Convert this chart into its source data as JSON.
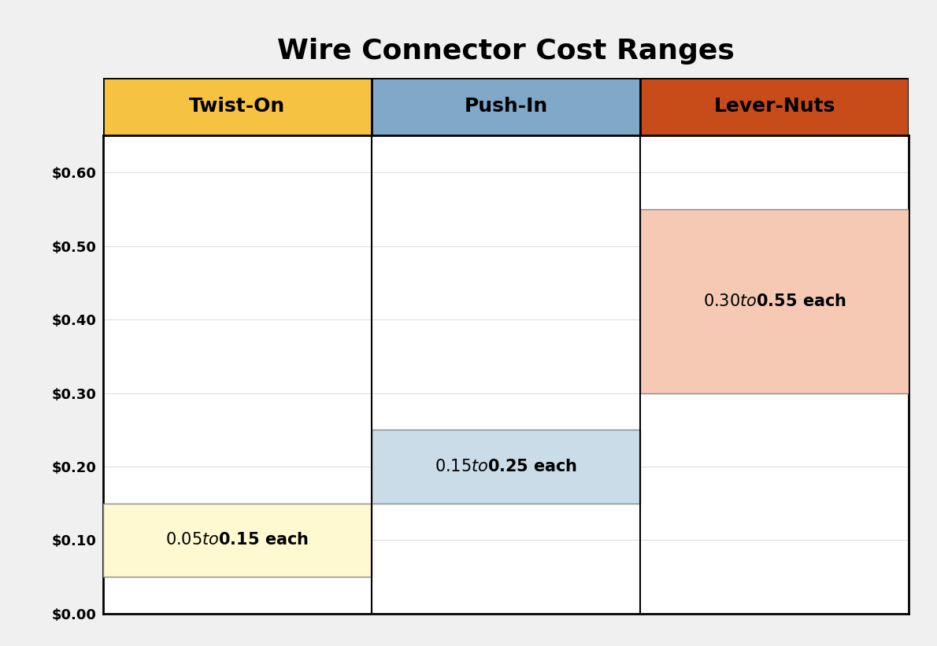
{
  "title": "Wire Connector Cost Ranges",
  "title_fontsize": 26,
  "title_fontweight": "bold",
  "columns": [
    "Twist-On",
    "Push-In",
    "Lever-Nuts"
  ],
  "header_colors": [
    "#F5C242",
    "#7FA8C9",
    "#C84B1A"
  ],
  "header_text_color": "#000000",
  "header_fontsize": 18,
  "header_fontweight": "bold",
  "ranges": [
    {
      "col": 0,
      "low": 0.05,
      "high": 0.15,
      "color": "#FEF9D0",
      "label": "$0.05 to $0.15 each"
    },
    {
      "col": 1,
      "low": 0.15,
      "high": 0.25,
      "color": "#C9DCE8",
      "label": "$0.15 to $0.25 each"
    },
    {
      "col": 2,
      "low": 0.3,
      "high": 0.55,
      "color": "#F5C9B3",
      "label": "$0.30 to $0.55 each"
    }
  ],
  "range_label_fontsize": 15,
  "range_label_fontweight": "bold",
  "ylim": [
    0.0,
    0.65
  ],
  "yticks": [
    0.0,
    0.1,
    0.2,
    0.3,
    0.4,
    0.5,
    0.6
  ],
  "ytick_labels": [
    "$0.00",
    "$0.10",
    "$0.20",
    "$0.30",
    "$0.40",
    "$0.50",
    "$0.60"
  ],
  "border_color": "#000000",
  "border_lw": 2.0,
  "col_divider_color": "#000000",
  "col_divider_lw": 1.5,
  "range_edge_color": "#888888",
  "range_edge_lw": 1.0,
  "background_color": "#ffffff",
  "fig_background": "#f0f0f0"
}
